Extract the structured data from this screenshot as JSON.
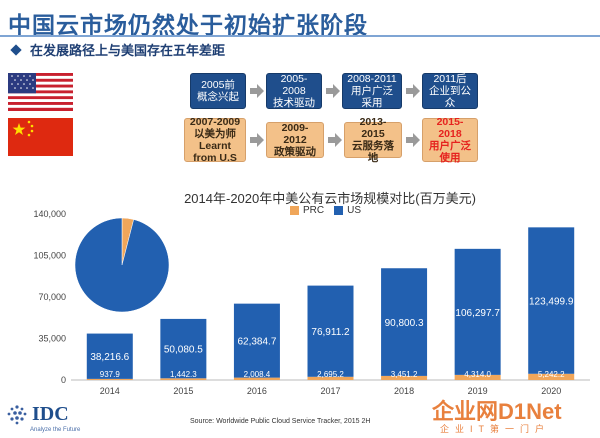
{
  "header": {
    "title": "中国云市场仍然处于初始扩张阶段",
    "subtitle": "在发展路径上与美国存在五年差距"
  },
  "timeline": {
    "us": [
      {
        "period": "2005前",
        "desc": "概念兴起"
      },
      {
        "period": "2005-2008",
        "desc": "技术驱动"
      },
      {
        "period": "2008-2011",
        "desc": "用户广泛采用"
      },
      {
        "period": "2011后",
        "desc": "企业到公众"
      }
    ],
    "prc": [
      {
        "period": "2007-2009",
        "desc": "以美为师 Learnt from U.S"
      },
      {
        "period": "2009-2012",
        "desc": "政策驱动"
      },
      {
        "period": "2013-2015",
        "desc": "云服务落地"
      },
      {
        "period": "2015-2018",
        "desc": "用户广泛使用"
      }
    ]
  },
  "chart_data": {
    "type": "bar",
    "title": "2014年-2020年中美公有云市场规模对比(百万美元)",
    "categories": [
      "2014",
      "2015",
      "2016",
      "2017",
      "2018",
      "2019",
      "2020"
    ],
    "series": [
      {
        "name": "PRC",
        "values": [
          937.9,
          1442.3,
          2008.4,
          2695.2,
          3451.2,
          4314.0,
          5242.2
        ],
        "labels": [
          "937.9",
          "1,442.3",
          "2,008.4",
          "2,695.2",
          "3,451.2",
          "4,314.0",
          "5,242.2"
        ]
      },
      {
        "name": "US",
        "values": [
          38216.6,
          50080.5,
          62384.7,
          76911.2,
          90800.3,
          106297.7,
          123499.9
        ],
        "labels": [
          "38,216.6",
          "50,080.5",
          "62,384.7",
          "76,911.2",
          "90,800.3",
          "106,297.7",
          "123,499.9"
        ]
      }
    ],
    "yticks": [
      "0",
      "35,000",
      "70,000",
      "105,000",
      "140,000"
    ],
    "ylim": [
      0,
      140000
    ],
    "legend_position": "top-center",
    "pie": {
      "values": [
        4.0,
        96.0
      ],
      "colors": [
        "#f0a65a",
        "#2260b0"
      ]
    },
    "colors": {
      "PRC": "#f0a65a",
      "US": "#2260b0"
    }
  },
  "footer": {
    "logo": "IDC",
    "tagline": "Analyze the Future",
    "source": "Source: Worldwide Public Cloud Service Tracker, 2015 2H",
    "watermark": "企业网D1Net",
    "watermark_sub": "企业IT第一门户"
  }
}
